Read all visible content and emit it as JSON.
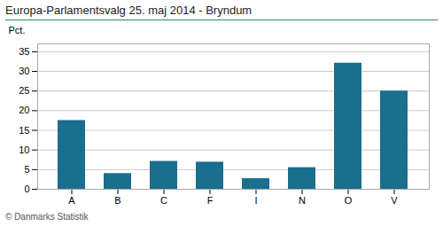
{
  "chart_data": {
    "type": "bar",
    "title": "Europa-Parlamentsvalg 25. maj 2014 - Bryndum",
    "categories": [
      "A",
      "B",
      "C",
      "F",
      "I",
      "N",
      "O",
      "V"
    ],
    "values": [
      17.5,
      4.0,
      7.1,
      6.9,
      2.7,
      5.5,
      32.1,
      25.0
    ],
    "color": "#1a6e8e",
    "ylabel": "Pct.",
    "caption": "© Danmarks Statistik",
    "ylim": [
      0,
      37
    ],
    "yticks": [
      0,
      5,
      10,
      15,
      20,
      25,
      30,
      35
    ],
    "grid": true
  }
}
